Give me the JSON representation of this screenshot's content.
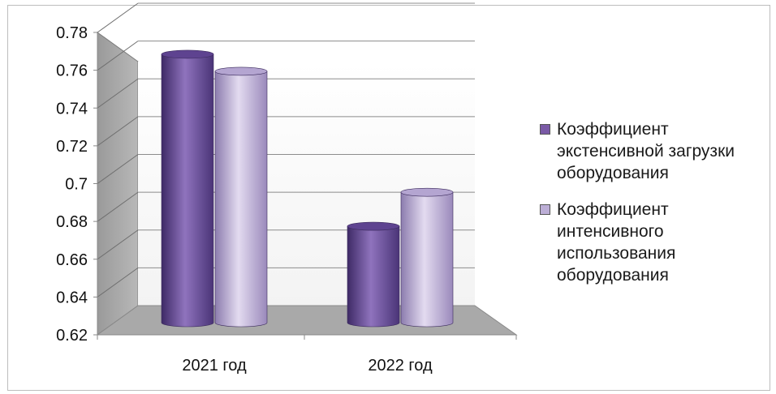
{
  "chart_data": {
    "type": "bar",
    "categories": [
      "2021 год",
      "2022 год"
    ],
    "series": [
      {
        "name": "Коэффициент экстенсивной загрузки оборудования",
        "values": [
          0.762,
          0.671
        ],
        "color": "#7a5aa6"
      },
      {
        "name": "Коэффициент интенсивного использования оборудования",
        "values": [
          0.753,
          0.689
        ],
        "color": "#bcaed6"
      }
    ],
    "ylim": [
      0.62,
      0.78
    ],
    "yticks": [
      "0.62",
      "0.64",
      "0.66",
      "0.68",
      "0.7",
      "0.72",
      "0.74",
      "0.76",
      "0.78"
    ],
    "grid": true,
    "legend_position": "right",
    "style": "3d-cylinder"
  }
}
